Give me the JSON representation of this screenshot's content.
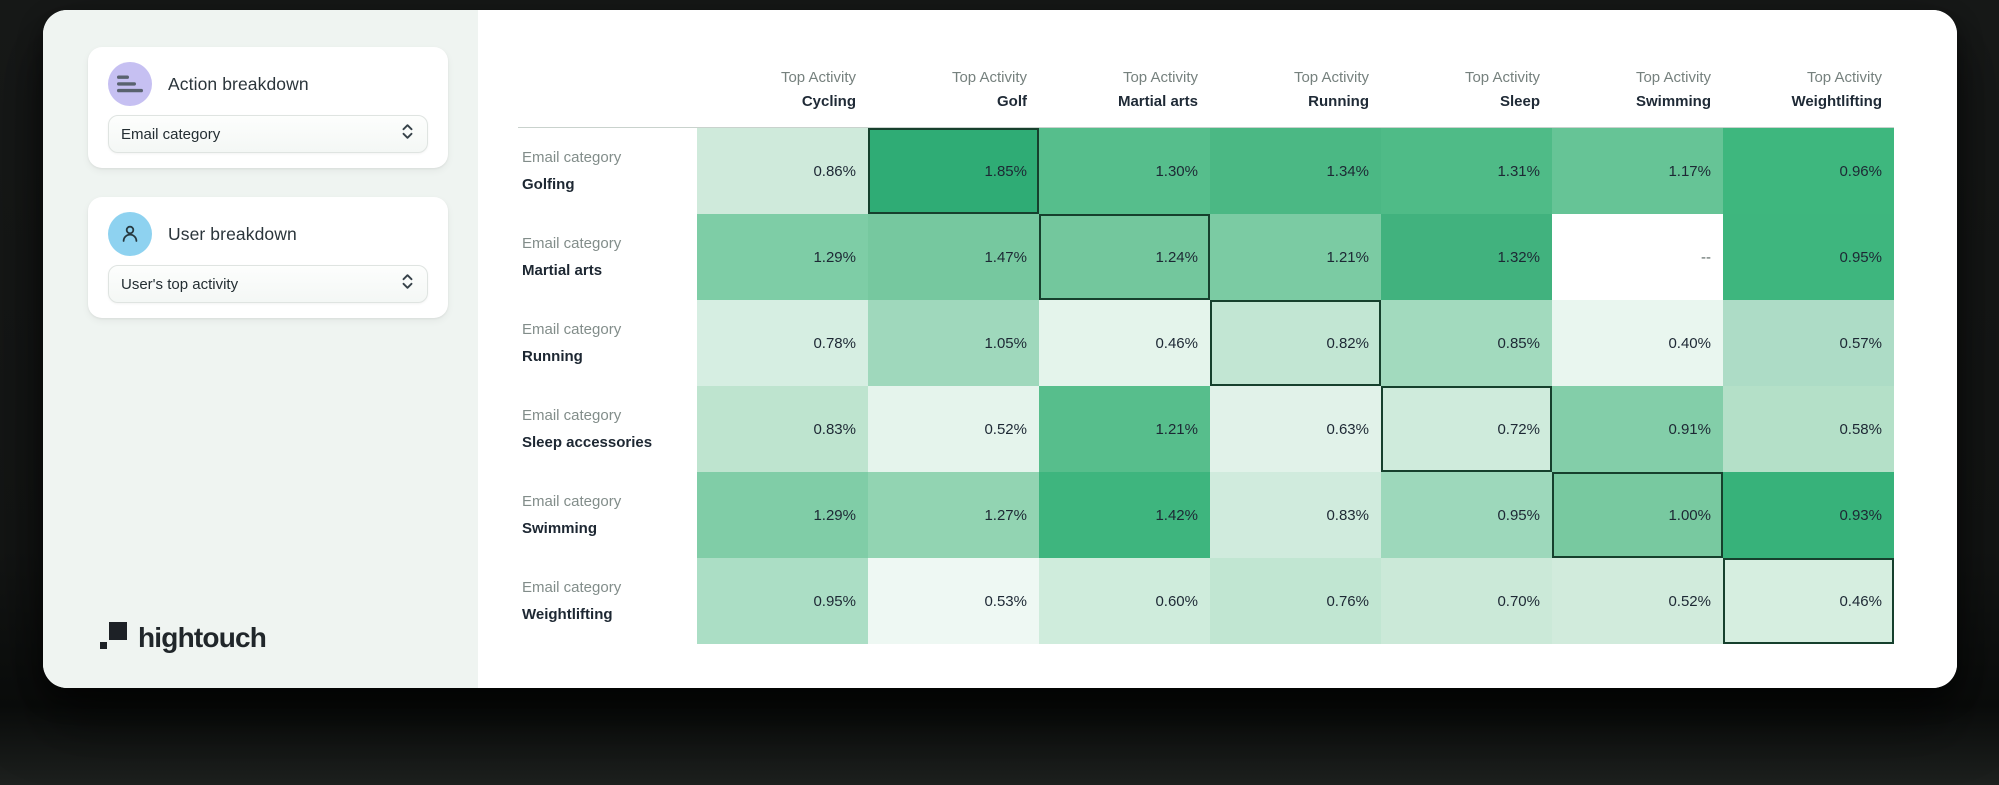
{
  "brand": {
    "name": "hightouch"
  },
  "sidebar": {
    "panels": [
      {
        "title": "Action breakdown",
        "icon": "bars-icon",
        "icon_bg": "#c6c0f2",
        "dropdown_value": "Email category"
      },
      {
        "title": "User breakdown",
        "icon": "user-icon",
        "icon_bg": "#8ed2f0",
        "dropdown_value": "User's top activity"
      }
    ]
  },
  "chart_data": {
    "type": "heatmap",
    "column_header_prefix": "Top Activity",
    "row_header_prefix": "Email category",
    "columns": [
      "Cycling",
      "Golf",
      "Martial arts",
      "Running",
      "Sleep",
      "Swimming",
      "Weightlifting"
    ],
    "rows": [
      "Golfing",
      "Martial arts",
      "Running",
      "Sleep accessories",
      "Swimming",
      "Weightlifting"
    ],
    "values_unit": "%",
    "values": [
      [
        0.86,
        1.85,
        1.3,
        1.34,
        1.31,
        1.17,
        0.96
      ],
      [
        1.29,
        1.47,
        1.24,
        1.21,
        1.32,
        null,
        0.95
      ],
      [
        0.78,
        1.05,
        0.46,
        0.82,
        0.85,
        0.4,
        0.57
      ],
      [
        0.83,
        0.52,
        1.21,
        0.63,
        0.72,
        0.91,
        0.58
      ],
      [
        1.29,
        1.27,
        1.42,
        0.83,
        0.95,
        1.0,
        0.93
      ],
      [
        0.95,
        0.53,
        0.6,
        0.76,
        0.7,
        0.52,
        0.46
      ]
    ],
    "missing_value_display": "--",
    "cell_colors": [
      [
        "#cfeadb",
        "#2fac75",
        "#56be8c",
        "#4bb884",
        "#4fbb87",
        "#66c496",
        "#3eb77e"
      ],
      [
        "#7ecda6",
        "#76c89f",
        "#73c79d",
        "#7bcba3",
        "#41b27e",
        "#ffffff",
        "#3eb67e"
      ],
      [
        "#d6eee2",
        "#9fd8bc",
        "#e4f4eb",
        "#c2e6d3",
        "#a2dabe",
        "#e9f6ef",
        "#addcc6"
      ],
      [
        "#bee4cf",
        "#e5f4ec",
        "#57be8c",
        "#e1f2e9",
        "#cfebdc",
        "#83cea9",
        "#b4e0c8"
      ],
      [
        "#80cda7",
        "#92d4b2",
        "#3eb57e",
        "#d0ebdd",
        "#9dd8bb",
        "#78c9a0",
        "#37b27a"
      ],
      [
        "#abdec5",
        "#eef8f3",
        "#cfecdc",
        "#c1e6d2",
        "#cbe9d8",
        "#d1ebdc",
        "#d6eee0"
      ]
    ],
    "highlighted_cells": [
      [
        0,
        1
      ],
      [
        1,
        2
      ],
      [
        2,
        3
      ],
      [
        3,
        4
      ],
      [
        4,
        5
      ],
      [
        5,
        6
      ]
    ],
    "highlight_border_color": "#16402d",
    "legend_position": "none",
    "grid": false
  }
}
